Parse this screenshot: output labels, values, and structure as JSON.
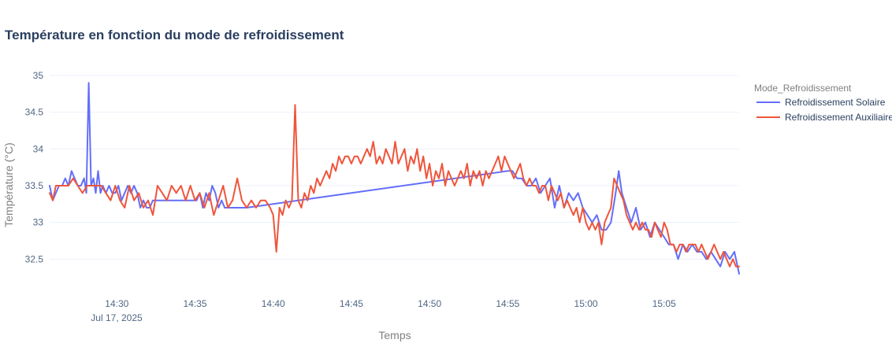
{
  "chart_data": {
    "type": "line",
    "title": "Température en fonction du mode de refroidissement",
    "xlabel": "Temps",
    "ylabel": "Température (°C)",
    "x_tick_labels": [
      "14:30",
      "14:35",
      "14:40",
      "14:45",
      "14:50",
      "14:55",
      "15:00",
      "15:05"
    ],
    "x_tick_minutes": [
      30,
      35,
      40,
      45,
      50,
      55,
      60,
      65
    ],
    "x_date_label": "Jul 17, 2025",
    "xlim_minutes": [
      25.7,
      69.8
    ],
    "x_axis_note": "minutes after 14:00 on Jul 17, 2025",
    "y_tick_labels": [
      "32.5",
      "33",
      "33.5",
      "34",
      "34.5",
      "35"
    ],
    "y_ticks": [
      32.5,
      33,
      33.5,
      34,
      34.5,
      35
    ],
    "ylim": [
      32.15,
      35.15
    ],
    "grid": true,
    "legend": {
      "title": "Mode_Refroidissement",
      "position": "right"
    },
    "series": [
      {
        "name": "Refroidissement Solaire",
        "color": "#636efa",
        "points": [
          [
            25.7,
            33.5
          ],
          [
            25.9,
            33.3
          ],
          [
            26.1,
            33.4
          ],
          [
            26.3,
            33.5
          ],
          [
            26.5,
            33.5
          ],
          [
            26.7,
            33.6
          ],
          [
            26.9,
            33.5
          ],
          [
            27.1,
            33.7
          ],
          [
            27.3,
            33.6
          ],
          [
            27.5,
            33.5
          ],
          [
            27.7,
            33.5
          ],
          [
            27.9,
            33.6
          ],
          [
            28.05,
            33.4
          ],
          [
            28.2,
            34.9
          ],
          [
            28.35,
            33.5
          ],
          [
            28.5,
            33.6
          ],
          [
            28.65,
            33.4
          ],
          [
            28.8,
            33.7
          ],
          [
            28.95,
            33.4
          ],
          [
            29.1,
            33.5
          ],
          [
            29.3,
            33.4
          ],
          [
            29.5,
            33.5
          ],
          [
            29.7,
            33.4
          ],
          [
            29.9,
            33.4
          ],
          [
            30.1,
            33.5
          ],
          [
            30.3,
            33.3
          ],
          [
            30.5,
            33.4
          ],
          [
            30.7,
            33.5
          ],
          [
            30.9,
            33.4
          ],
          [
            31.1,
            33.5
          ],
          [
            31.3,
            33.4
          ],
          [
            31.5,
            33.2
          ],
          [
            31.7,
            33.3
          ],
          [
            31.9,
            33.2
          ],
          [
            32.1,
            33.2
          ],
          [
            32.3,
            33.3
          ],
          [
            32.5,
            33.3
          ],
          [
            32.7,
            33.3
          ],
          [
            33.0,
            33.3
          ],
          [
            33.3,
            33.3
          ],
          [
            33.6,
            33.3
          ],
          [
            33.9,
            33.3
          ],
          [
            34.2,
            33.3
          ],
          [
            34.5,
            33.3
          ],
          [
            34.8,
            33.3
          ],
          [
            35.1,
            33.3
          ],
          [
            35.3,
            33.4
          ],
          [
            35.5,
            33.2
          ],
          [
            35.7,
            33.4
          ],
          [
            35.9,
            33.3
          ],
          [
            36.1,
            33.5
          ],
          [
            36.3,
            33.4
          ],
          [
            36.5,
            33.2
          ],
          [
            36.7,
            33.3
          ],
          [
            36.9,
            33.2
          ],
          [
            37.1,
            33.2
          ],
          [
            37.4,
            33.2
          ],
          [
            37.7,
            33.2
          ],
          [
            38.0,
            33.2
          ],
          [
            38.3,
            33.2
          ],
          [
            55.0,
            33.7
          ],
          [
            55.3,
            33.7
          ],
          [
            55.6,
            33.6
          ],
          [
            55.9,
            33.6
          ],
          [
            56.2,
            33.5
          ],
          [
            56.5,
            33.5
          ],
          [
            56.8,
            33.6
          ],
          [
            57.1,
            33.4
          ],
          [
            57.4,
            33.5
          ],
          [
            57.7,
            33.6
          ],
          [
            58.0,
            33.2
          ],
          [
            58.3,
            33.5
          ],
          [
            58.6,
            33.2
          ],
          [
            58.9,
            33.4
          ],
          [
            59.2,
            33.3
          ],
          [
            59.5,
            33.4
          ],
          [
            59.8,
            33.2
          ],
          [
            60.1,
            33.1
          ],
          [
            60.4,
            33.0
          ],
          [
            60.7,
            33.1
          ],
          [
            61.0,
            32.9
          ],
          [
            61.3,
            32.9
          ],
          [
            61.6,
            33.0
          ],
          [
            61.9,
            33.4
          ],
          [
            62.1,
            33.7
          ],
          [
            62.3,
            33.4
          ],
          [
            62.6,
            33.2
          ],
          [
            62.9,
            33.0
          ],
          [
            63.2,
            33.2
          ],
          [
            63.5,
            32.9
          ],
          [
            63.8,
            33.0
          ],
          [
            64.1,
            32.8
          ],
          [
            64.4,
            33.0
          ],
          [
            64.7,
            32.9
          ],
          [
            65.0,
            32.8
          ],
          [
            65.3,
            32.7
          ],
          [
            65.6,
            32.7
          ],
          [
            65.9,
            32.5
          ],
          [
            66.2,
            32.7
          ],
          [
            66.5,
            32.6
          ],
          [
            66.8,
            32.7
          ],
          [
            67.1,
            32.6
          ],
          [
            67.4,
            32.6
          ],
          [
            67.7,
            32.5
          ],
          [
            68.0,
            32.6
          ],
          [
            68.3,
            32.5
          ],
          [
            68.6,
            32.4
          ],
          [
            68.9,
            32.6
          ],
          [
            69.2,
            32.5
          ],
          [
            69.5,
            32.6
          ],
          [
            69.8,
            32.3
          ]
        ]
      },
      {
        "name": "Refroidissement Auxiliaire",
        "color": "#ef553b",
        "points": [
          [
            25.7,
            33.4
          ],
          [
            25.9,
            33.3
          ],
          [
            26.1,
            33.5
          ],
          [
            26.3,
            33.5
          ],
          [
            26.6,
            33.5
          ],
          [
            26.9,
            33.5
          ],
          [
            27.2,
            33.6
          ],
          [
            27.5,
            33.5
          ],
          [
            27.8,
            33.4
          ],
          [
            28.1,
            33.5
          ],
          [
            28.4,
            33.5
          ],
          [
            28.7,
            33.5
          ],
          [
            29.0,
            33.5
          ],
          [
            29.3,
            33.4
          ],
          [
            29.6,
            33.3
          ],
          [
            29.9,
            33.5
          ],
          [
            30.2,
            33.3
          ],
          [
            30.5,
            33.2
          ],
          [
            30.8,
            33.5
          ],
          [
            31.1,
            33.3
          ],
          [
            31.4,
            33.4
          ],
          [
            31.7,
            33.2
          ],
          [
            32.0,
            33.3
          ],
          [
            32.3,
            33.1
          ],
          [
            32.6,
            33.5
          ],
          [
            32.9,
            33.4
          ],
          [
            33.2,
            33.3
          ],
          [
            33.5,
            33.5
          ],
          [
            33.8,
            33.4
          ],
          [
            34.1,
            33.5
          ],
          [
            34.4,
            33.3
          ],
          [
            34.7,
            33.5
          ],
          [
            35.0,
            33.3
          ],
          [
            35.3,
            33.4
          ],
          [
            35.6,
            33.2
          ],
          [
            35.9,
            33.4
          ],
          [
            36.2,
            33.1
          ],
          [
            36.5,
            33.3
          ],
          [
            36.8,
            33.5
          ],
          [
            37.1,
            33.2
          ],
          [
            37.4,
            33.3
          ],
          [
            37.7,
            33.6
          ],
          [
            38.0,
            33.3
          ],
          [
            38.3,
            33.2
          ],
          [
            38.6,
            33.3
          ],
          [
            38.9,
            33.2
          ],
          [
            39.2,
            33.3
          ],
          [
            39.5,
            33.3
          ],
          [
            39.8,
            33.2
          ],
          [
            40.0,
            33.1
          ],
          [
            40.2,
            32.6
          ],
          [
            40.4,
            33.2
          ],
          [
            40.6,
            33.1
          ],
          [
            40.8,
            33.3
          ],
          [
            41.0,
            33.2
          ],
          [
            41.2,
            33.3
          ],
          [
            41.4,
            34.6
          ],
          [
            41.6,
            33.3
          ],
          [
            41.8,
            33.2
          ],
          [
            42.0,
            33.4
          ],
          [
            42.2,
            33.3
          ],
          [
            42.4,
            33.5
          ],
          [
            42.6,
            33.4
          ],
          [
            42.8,
            33.6
          ],
          [
            43.0,
            33.5
          ],
          [
            43.2,
            33.6
          ],
          [
            43.4,
            33.7
          ],
          [
            43.6,
            33.6
          ],
          [
            43.8,
            33.8
          ],
          [
            44.0,
            33.7
          ],
          [
            44.2,
            33.9
          ],
          [
            44.4,
            33.8
          ],
          [
            44.6,
            33.9
          ],
          [
            44.8,
            33.9
          ],
          [
            45.0,
            33.8
          ],
          [
            45.2,
            33.9
          ],
          [
            45.4,
            33.9
          ],
          [
            45.6,
            33.8
          ],
          [
            45.8,
            33.9
          ],
          [
            46.0,
            34.0
          ],
          [
            46.2,
            33.9
          ],
          [
            46.4,
            34.1
          ],
          [
            46.6,
            33.8
          ],
          [
            46.8,
            33.9
          ],
          [
            47.0,
            33.8
          ],
          [
            47.2,
            34.0
          ],
          [
            47.4,
            33.9
          ],
          [
            47.6,
            33.8
          ],
          [
            47.8,
            34.1
          ],
          [
            48.0,
            33.8
          ],
          [
            48.2,
            33.9
          ],
          [
            48.4,
            34.0
          ],
          [
            48.6,
            33.7
          ],
          [
            48.8,
            33.9
          ],
          [
            49.0,
            33.8
          ],
          [
            49.2,
            34.0
          ],
          [
            49.4,
            33.7
          ],
          [
            49.6,
            33.9
          ],
          [
            49.8,
            33.6
          ],
          [
            50.0,
            33.8
          ],
          [
            50.2,
            33.5
          ],
          [
            50.4,
            33.7
          ],
          [
            50.6,
            33.6
          ],
          [
            50.8,
            33.8
          ],
          [
            51.0,
            33.5
          ],
          [
            51.2,
            33.7
          ],
          [
            51.4,
            33.6
          ],
          [
            51.6,
            33.5
          ],
          [
            51.8,
            33.6
          ],
          [
            52.0,
            33.7
          ],
          [
            52.2,
            33.6
          ],
          [
            52.4,
            33.8
          ],
          [
            52.6,
            33.5
          ],
          [
            52.8,
            33.7
          ],
          [
            53.0,
            33.6
          ],
          [
            53.2,
            33.7
          ],
          [
            53.4,
            33.5
          ],
          [
            53.6,
            33.7
          ],
          [
            53.8,
            33.6
          ],
          [
            54.0,
            33.7
          ],
          [
            54.2,
            33.8
          ],
          [
            54.4,
            33.9
          ],
          [
            54.6,
            33.7
          ],
          [
            54.8,
            33.9
          ],
          [
            55.0,
            33.8
          ],
          [
            55.2,
            33.7
          ],
          [
            55.4,
            33.6
          ],
          [
            55.6,
            33.7
          ],
          [
            55.8,
            33.8
          ],
          [
            56.0,
            33.6
          ],
          [
            56.2,
            33.5
          ],
          [
            56.4,
            33.6
          ],
          [
            56.6,
            33.5
          ],
          [
            56.8,
            33.5
          ],
          [
            57.0,
            33.4
          ],
          [
            57.2,
            33.5
          ],
          [
            57.4,
            33.5
          ],
          [
            57.6,
            33.3
          ],
          [
            57.8,
            33.5
          ],
          [
            58.0,
            33.4
          ],
          [
            58.2,
            33.3
          ],
          [
            58.4,
            33.4
          ],
          [
            58.6,
            33.2
          ],
          [
            58.8,
            33.3
          ],
          [
            59.0,
            33.2
          ],
          [
            59.2,
            33.1
          ],
          [
            59.4,
            33.2
          ],
          [
            59.6,
            33.0
          ],
          [
            59.8,
            33.2
          ],
          [
            60.0,
            33.0
          ],
          [
            60.2,
            32.9
          ],
          [
            60.4,
            33.0
          ],
          [
            60.6,
            32.9
          ],
          [
            60.8,
            33.0
          ],
          [
            61.0,
            32.7
          ],
          [
            61.2,
            33.0
          ],
          [
            61.4,
            33.1
          ],
          [
            61.6,
            33.2
          ],
          [
            61.8,
            33.6
          ],
          [
            62.0,
            33.5
          ],
          [
            62.2,
            33.4
          ],
          [
            62.4,
            33.3
          ],
          [
            62.6,
            33.1
          ],
          [
            62.8,
            33.0
          ],
          [
            63.0,
            32.9
          ],
          [
            63.2,
            33.0
          ],
          [
            63.4,
            32.9
          ],
          [
            63.6,
            33.0
          ],
          [
            63.8,
            32.9
          ],
          [
            64.0,
            32.9
          ],
          [
            64.2,
            32.8
          ],
          [
            64.4,
            33.0
          ],
          [
            64.6,
            32.9
          ],
          [
            64.8,
            32.8
          ],
          [
            65.0,
            33.0
          ],
          [
            65.2,
            32.9
          ],
          [
            65.4,
            32.7
          ],
          [
            65.6,
            32.7
          ],
          [
            65.8,
            32.6
          ],
          [
            66.0,
            32.7
          ],
          [
            66.2,
            32.7
          ],
          [
            66.4,
            32.6
          ],
          [
            66.6,
            32.7
          ],
          [
            66.8,
            32.7
          ],
          [
            67.0,
            32.7
          ],
          [
            67.2,
            32.6
          ],
          [
            67.4,
            32.7
          ],
          [
            67.6,
            32.6
          ],
          [
            67.8,
            32.5
          ],
          [
            68.0,
            32.6
          ],
          [
            68.2,
            32.7
          ],
          [
            68.4,
            32.6
          ],
          [
            68.6,
            32.5
          ],
          [
            68.8,
            32.6
          ],
          [
            69.0,
            32.5
          ],
          [
            69.2,
            32.4
          ],
          [
            69.4,
            32.5
          ],
          [
            69.6,
            32.4
          ],
          [
            69.8,
            32.4
          ]
        ]
      }
    ]
  }
}
